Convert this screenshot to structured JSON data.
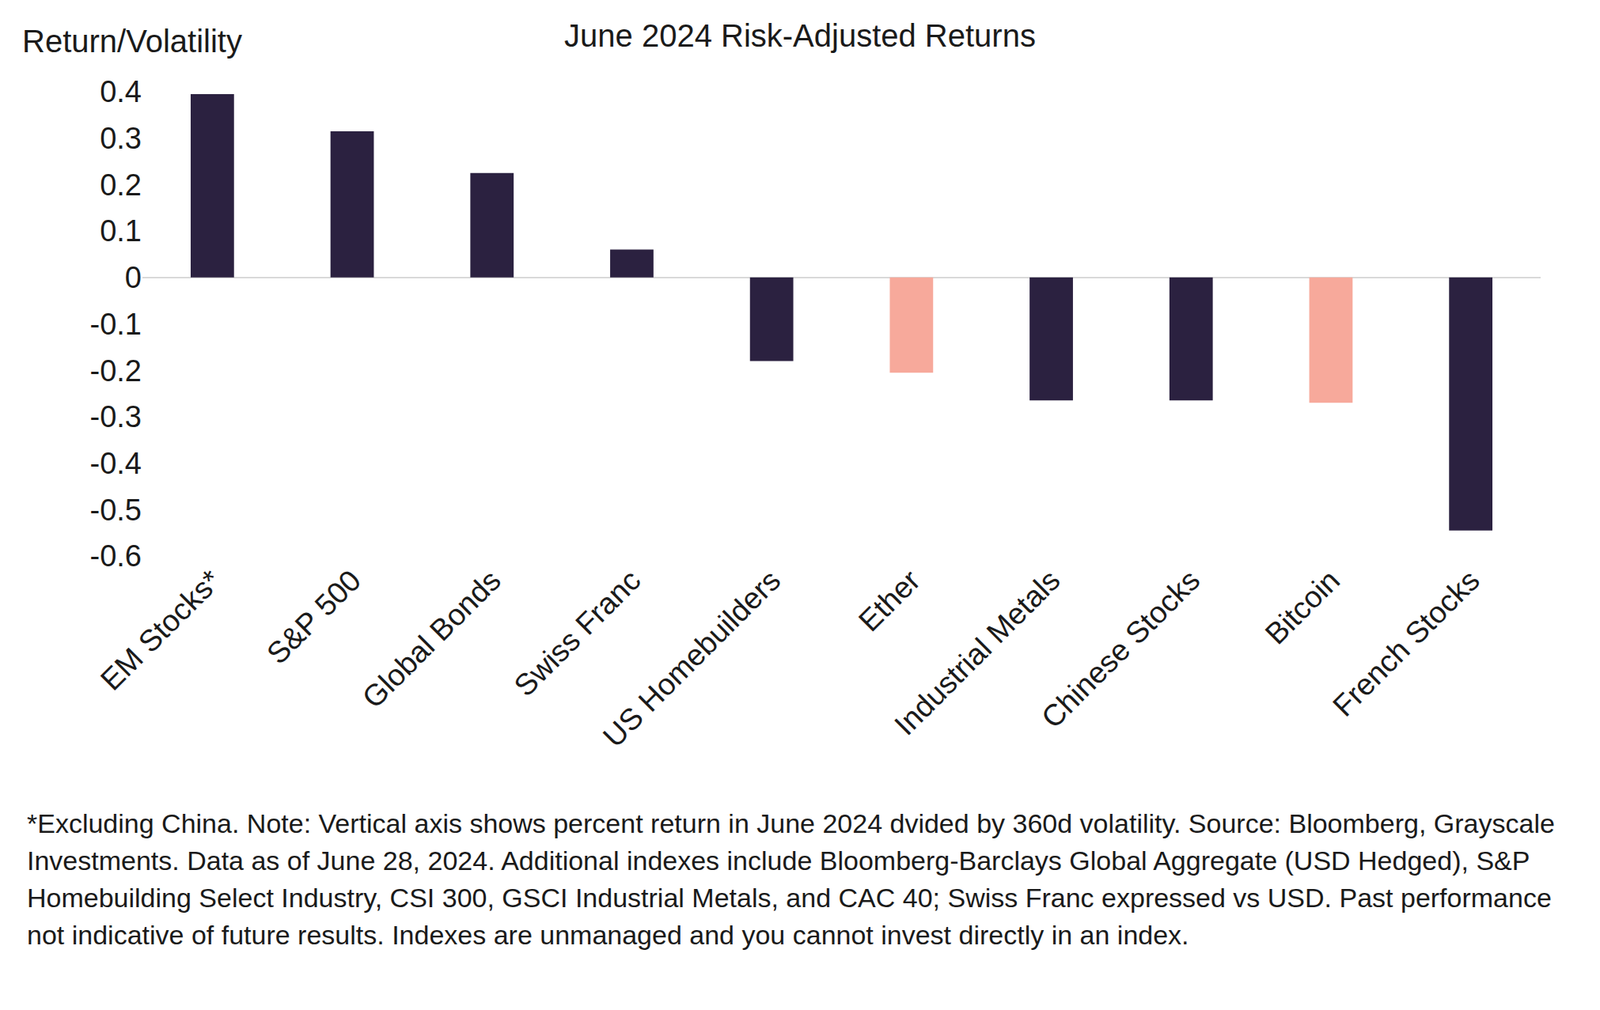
{
  "chart_data": {
    "type": "bar",
    "title": "June 2024 Risk-Adjusted Returns",
    "y_label": "Return/Volatility",
    "categories": [
      "EM Stocks*",
      "S&P 500",
      "Global Bonds",
      "Swiss Franc",
      "US Homebuilders",
      "Ether",
      "Industrial Metals",
      "Chinese Stocks",
      "Bitcoin",
      "French Stocks"
    ],
    "values": [
      0.395,
      0.315,
      0.225,
      0.06,
      -0.18,
      -0.205,
      -0.265,
      -0.265,
      -0.27,
      -0.545
    ],
    "colors": [
      "#2b2140",
      "#2b2140",
      "#2b2140",
      "#2b2140",
      "#2b2140",
      "#f7a99b",
      "#2b2140",
      "#2b2140",
      "#f7a99b",
      "#2b2140"
    ],
    "ylim": [
      -0.6,
      0.4
    ],
    "yticks": [
      0.4,
      0.3,
      0.2,
      0.1,
      0,
      -0.1,
      -0.2,
      -0.3,
      -0.4,
      -0.5,
      -0.6
    ],
    "grid": false,
    "annotations": [
      "*Excluding China. Note: Vertical axis shows percent return in June 2024 dvided by 360d volatility. Source: Bloomberg, Grayscale Investments. Data as of June 28, 2024. Additional indexes include Bloomberg-Barclays Global Aggregate (USD Hedged), S&P Homebuilding Select Industry, CSI 300, GSCI Industrial Metals, and CAC 40; Swiss Franc expressed vs USD. Past performance not indicative of future results. Indexes are unmanaged and you cannot invest directly in an index."
    ]
  }
}
